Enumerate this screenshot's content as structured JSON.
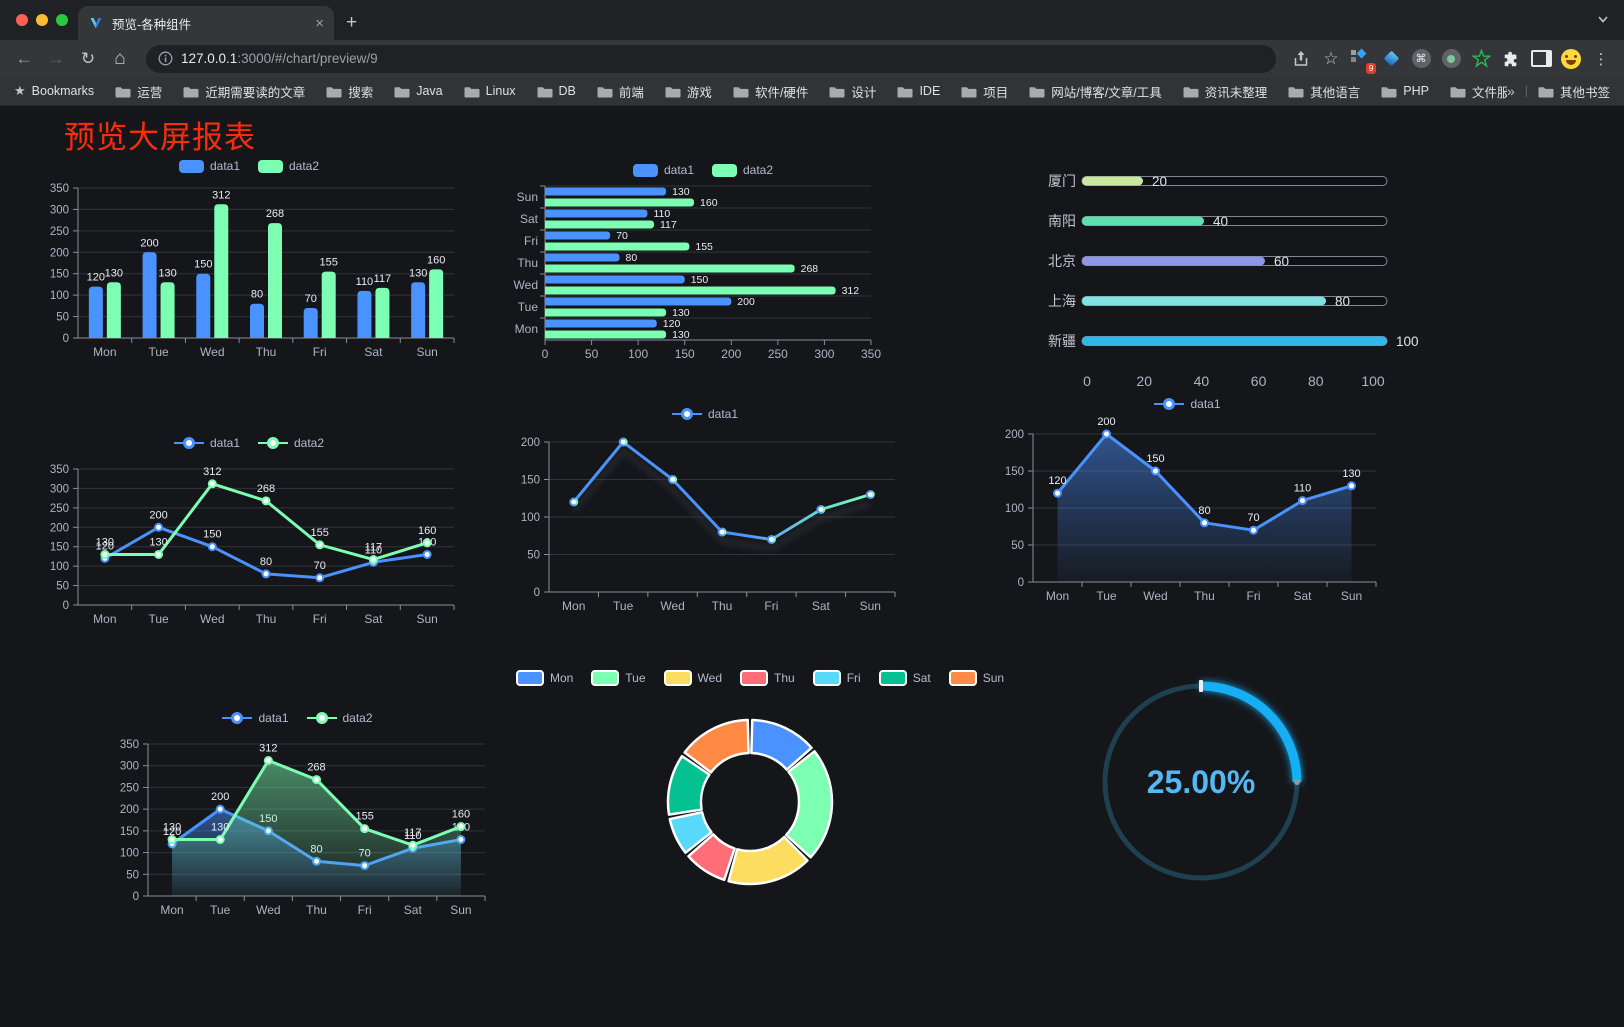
{
  "browser": {
    "tab_title": "预览-各种组件",
    "url_host": "127.0.0.1",
    "url_rest": ":3000/#/chart/preview/9",
    "bookmarks_label": "Bookmarks",
    "bookmarks": [
      "运营",
      "近期需要读的文章",
      "搜索",
      "Java",
      "Linux",
      "DB",
      "前端",
      "游戏",
      "软件/硬件",
      "设计",
      "IDE",
      "项目",
      "网站/博客/文章/工具",
      "资讯未整理",
      "其他语言",
      "PHP",
      "文件服务器"
    ],
    "bookmarks_overflow": "»",
    "other_bookmarks": "其他书签",
    "extension_badge": "9"
  },
  "page": {
    "title": "预览大屏报表",
    "title_color": "#fe2c0d"
  },
  "chart_data": [
    {
      "id": "bar-vertical",
      "type": "bar",
      "categories": [
        "Mon",
        "Tue",
        "Wed",
        "Thu",
        "Fri",
        "Sat",
        "Sun"
      ],
      "series": [
        {
          "name": "data1",
          "color": "#4992ff",
          "values": [
            120,
            200,
            150,
            80,
            70,
            110,
            130
          ]
        },
        {
          "name": "data2",
          "color": "#7cffb2",
          "values": [
            130,
            130,
            312,
            268,
            155,
            117,
            160
          ]
        }
      ],
      "ylim": [
        0,
        350
      ],
      "ytick": 50,
      "value_labels": true,
      "legend_position": "top",
      "grid": true
    },
    {
      "id": "bar-horizontal",
      "type": "bar",
      "orientation": "horizontal",
      "categories": [
        "Mon",
        "Tue",
        "Wed",
        "Thu",
        "Fri",
        "Sat",
        "Sun"
      ],
      "series": [
        {
          "name": "data1",
          "color": "#4992ff",
          "values": [
            120,
            200,
            150,
            80,
            70,
            110,
            130
          ]
        },
        {
          "name": "data2",
          "color": "#7cffb2",
          "values": [
            130,
            130,
            312,
            268,
            155,
            117,
            160
          ]
        }
      ],
      "xlim": [
        0,
        350
      ],
      "xtick": 50,
      "value_labels": true,
      "legend_position": "top",
      "grid": true
    },
    {
      "id": "progress-bars",
      "type": "bar",
      "orientation": "horizontal",
      "items": [
        {
          "label": "厦门",
          "value": 20,
          "color": "#cbe8a2"
        },
        {
          "label": "南阳",
          "value": 40,
          "color": "#5de0ae"
        },
        {
          "label": "北京",
          "value": 60,
          "color": "#8f96e3"
        },
        {
          "label": "上海",
          "value": 80,
          "color": "#7fe2e2"
        },
        {
          "label": "新疆",
          "value": 100,
          "color": "#30b6e8"
        }
      ],
      "xlim": [
        0,
        100
      ],
      "xticks": [
        0,
        20,
        40,
        60,
        80,
        100
      ]
    },
    {
      "id": "line-dual",
      "type": "line",
      "categories": [
        "Mon",
        "Tue",
        "Wed",
        "Thu",
        "Fri",
        "Sat",
        "Sun"
      ],
      "series": [
        {
          "name": "data1",
          "color": "#4992ff",
          "values": [
            120,
            200,
            150,
            80,
            70,
            110,
            130
          ]
        },
        {
          "name": "data2",
          "color": "#7cffb2",
          "values": [
            130,
            130,
            312,
            268,
            155,
            117,
            160
          ]
        }
      ],
      "ylim": [
        0,
        350
      ],
      "ytick": 50,
      "value_labels": true,
      "legend_position": "top",
      "grid": true
    },
    {
      "id": "line-gradient",
      "type": "line",
      "categories": [
        "Mon",
        "Tue",
        "Wed",
        "Thu",
        "Fri",
        "Sat",
        "Sun"
      ],
      "series": [
        {
          "name": "data1",
          "color": "#4992ff",
          "color_start": "#4992ff",
          "color_end": "#7cffb2",
          "values": [
            120,
            200,
            150,
            80,
            70,
            110,
            130
          ]
        }
      ],
      "ylim": [
        0,
        200
      ],
      "ytick": 50,
      "value_labels": false,
      "legend_position": "top",
      "grid": true
    },
    {
      "id": "area-single",
      "type": "area",
      "categories": [
        "Mon",
        "Tue",
        "Wed",
        "Thu",
        "Fri",
        "Sat",
        "Sun"
      ],
      "series": [
        {
          "name": "data1",
          "color": "#4992ff",
          "values": [
            120,
            200,
            150,
            80,
            70,
            110,
            130
          ]
        }
      ],
      "ylim": [
        0,
        200
      ],
      "ytick": 50,
      "value_labels": true,
      "legend_position": "top",
      "grid": true
    },
    {
      "id": "area-dual",
      "type": "area",
      "categories": [
        "Mon",
        "Tue",
        "Wed",
        "Thu",
        "Fri",
        "Sat",
        "Sun"
      ],
      "series": [
        {
          "name": "data1",
          "color": "#4992ff",
          "values": [
            120,
            200,
            150,
            80,
            70,
            110,
            130
          ]
        },
        {
          "name": "data2",
          "color": "#7cffb2",
          "values": [
            130,
            130,
            312,
            268,
            155,
            117,
            160
          ]
        }
      ],
      "ylim": [
        0,
        350
      ],
      "ytick": 50,
      "value_labels": true,
      "legend_position": "top",
      "grid": true
    },
    {
      "id": "donut",
      "type": "pie",
      "categories": [
        "Mon",
        "Tue",
        "Wed",
        "Thu",
        "Fri",
        "Sat",
        "Sun"
      ],
      "values": [
        120,
        200,
        150,
        80,
        70,
        110,
        130
      ],
      "colors": [
        "#4992ff",
        "#7cffb2",
        "#fddd60",
        "#ff6e76",
        "#58d9f9",
        "#05c091",
        "#ff8a45"
      ],
      "legend_position": "top"
    },
    {
      "id": "gauge",
      "type": "gauge",
      "value": 25,
      "label": "25.00%",
      "color": "#18aef5",
      "track_color": "#1e4050",
      "text_color": "#55b8f2"
    }
  ]
}
